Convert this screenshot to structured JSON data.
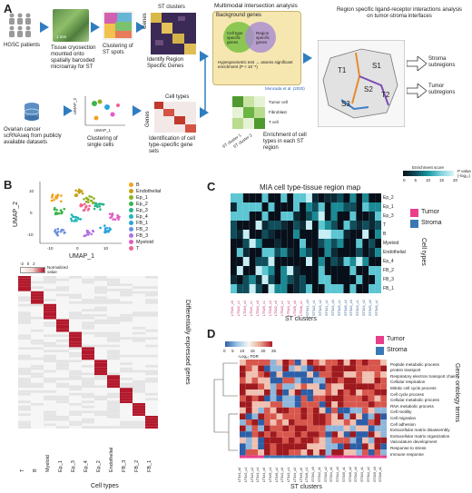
{
  "colors": {
    "arrow": "#2f7dc1",
    "tumor": "#e83e8c",
    "stroma": "#3a78b5",
    "venn_bg": "#f6e7b0",
    "venn_cell": "#7ac143",
    "venn_region": "#a78bd2"
  },
  "panel_a": {
    "letter": "A",
    "hgsc": "HGSC patients",
    "tissue": "Tissue cryosection mounted onto spatially barcoded microarray for ST",
    "scalebar": "1 mm",
    "clustering_st": "Clustering of ST spots",
    "st_clusters": "ST clusters",
    "genes": "Genes",
    "identify_region": "Identify Region Specific Genes",
    "multimodal": "Multimodal intersection analysis",
    "background": "Background genes",
    "cell_specific": "Cell type specific genes",
    "region_specific": "Region specific genes",
    "hypergeo": "Hypergeometric test → assess significant enrichment (P < 10⁻⁵)",
    "moncada": "Moncada et al. (2020)",
    "tumor_cell": "Tumor cell",
    "fibroblast": "Fibroblast",
    "tcell": "T cell",
    "st_cluster1": "ST cluster 1",
    "st_cluster2": "ST cluster 2",
    "enrichment": "Enrichment of cell types in each ST region",
    "ligand": "Region specific ligand-receptor interactions analysis on tumor-stroma interfaces",
    "region_labels": [
      "T1",
      "S1",
      "S2",
      "T2",
      "S3"
    ],
    "stroma_sub": "Stroma subregions",
    "tumor_sub": "Tumor subregions",
    "ovarian": "Ovarian cancer scRNAseq from publicly available datasets",
    "umap2": "UMAP_2",
    "umap1": "UMAP_1",
    "clustering_single": "Clustering of single cells",
    "cell_types": "Cell types",
    "identification": "Identification of cell type-specific gene sets"
  },
  "panel_b": {
    "letter": "B",
    "umap2": "UMAP_2",
    "umap1": "UMAP_1",
    "yticks": [
      "10",
      "0",
      "-10"
    ],
    "xticks": [
      "-10",
      "0",
      "10"
    ],
    "legend": [
      {
        "label": "B",
        "color": "#f4a11d"
      },
      {
        "label": "Endothelial",
        "color": "#c8a21a"
      },
      {
        "label": "Ep_1",
        "color": "#8fb021"
      },
      {
        "label": "Ep_2",
        "color": "#3cb44b"
      },
      {
        "label": "Ep_3",
        "color": "#2ab58d"
      },
      {
        "label": "Ep_4",
        "color": "#1fb6b6"
      },
      {
        "label": "FB_1",
        "color": "#2aa5d9"
      },
      {
        "label": "FB_2",
        "color": "#6b8fe0"
      },
      {
        "label": "FB_3",
        "color": "#b374e0"
      },
      {
        "label": "Myeloid",
        "color": "#e05cc8"
      },
      {
        "label": "T",
        "color": "#f0658e"
      }
    ],
    "scale_ticks": [
      "-2",
      "0",
      "2"
    ],
    "scale_label": "Normalized value",
    "xaxis_label": "Cell types",
    "yaxis_label": "Differentially expressed genes",
    "columns": [
      "T",
      "B",
      "Myeloid",
      "Ep_1",
      "Ep_3",
      "Ep_4",
      "Ep_2",
      "Endothelial",
      "FB_3",
      "FB_2",
      "FB_1"
    ]
  },
  "panel_c": {
    "letter": "C",
    "title": "MIA cell type-tissue region map",
    "scale_title": "Enrichment score",
    "scale_ticks": [
      "0",
      "5",
      "10",
      "15",
      "20"
    ],
    "scale_label": "P value (-log₁₀)",
    "rows": [
      "Ep_2",
      "Ep_1",
      "Ep_3",
      "T",
      "B",
      "Myeloid",
      "Endothelial",
      "Ep_4",
      "FB_2",
      "FB_3",
      "FB_1"
    ],
    "cols": [
      "LTS#1_c0",
      "LTS#2_c1",
      "LTS#3_c2",
      "LTS#1_c1",
      "LTS#4_c0",
      "LTS#5_c1",
      "LTS#6_c2",
      "LTS#2_c0",
      "LTS#3_c1",
      "LTS#4_c2",
      "LTS#5_c0",
      "LTS#6_c1",
      "STS#1_c0",
      "STS#2_c1",
      "STS#3_c2",
      "STS#1_c1",
      "STS#4_c0",
      "STS#5_c1",
      "STS#6_c2",
      "STS#2_c0",
      "STS#3_c1",
      "STS#4_c2",
      "STS#5_c0",
      "STS#6_c1"
    ],
    "legend_tumor": "Tumor",
    "legend_stroma": "Stroma",
    "ylabel": "Cell types",
    "xlabel": "ST clusters"
  },
  "panel_d": {
    "letter": "D",
    "scale_ticks": [
      "0",
      "5",
      "10",
      "15",
      "20",
      "25"
    ],
    "scale_label": "-Log₁₀ FDR",
    "legend_tumor": "Tumor",
    "legend_stroma": "Stroma",
    "terms": [
      "Peptide metabolic process",
      "protein transport",
      "Respiratory electron transport chain",
      "Cellular respiration",
      "Mitotic cell cycle process",
      "Cell cycle process",
      "Cellular metabolic process",
      "RNA metabolic process",
      "Cell motility",
      "Cell migration",
      "Cell adhesion",
      "Extracellular matrix disassembly",
      "Extracellular matrix organization",
      "Vasculature development",
      "Response to stress",
      "Immune response"
    ],
    "ylabel": "Gene ontology terms",
    "xlabel": "ST clusters"
  }
}
